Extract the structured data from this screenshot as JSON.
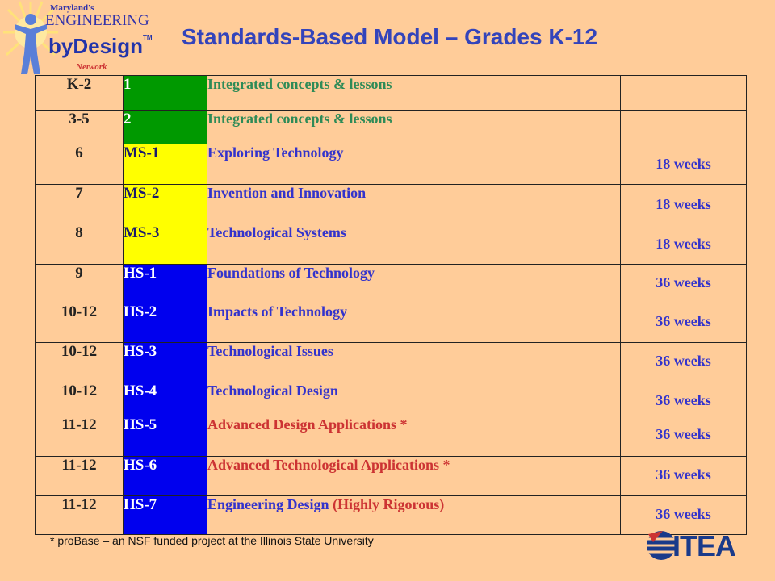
{
  "logo": {
    "line1": "Maryland's",
    "line2": "ENGINEERING",
    "line3": "byDesign",
    "tm": "TM",
    "line4": "Network"
  },
  "title": "Standards-Based Model – Grades K-12",
  "rows": [
    {
      "grade": "K-2",
      "course": "1",
      "course_color": "green",
      "desc": [
        {
          "text": "Integrated concepts & lessons",
          "color": "green"
        }
      ],
      "duration": ""
    },
    {
      "grade": "3-5",
      "course": "2",
      "course_color": "green",
      "desc": [
        {
          "text": "Integrated concepts & lessons",
          "color": "green"
        }
      ],
      "duration": ""
    },
    {
      "grade": "6",
      "course": "MS-1",
      "course_color": "yellow",
      "desc": [
        {
          "text": "Exploring Technology",
          "color": "blue"
        }
      ],
      "duration": "18 weeks"
    },
    {
      "grade": "7",
      "course": "MS-2",
      "course_color": "yellow",
      "desc": [
        {
          "text": "Invention and Innovation",
          "color": "blue"
        }
      ],
      "duration": "18 weeks"
    },
    {
      "grade": "8",
      "course": "MS-3",
      "course_color": "yellow",
      "desc": [
        {
          "text": "Technological Systems",
          "color": "blue"
        }
      ],
      "duration": "18 weeks"
    },
    {
      "grade": "9",
      "course": "HS-1",
      "course_color": "blue",
      "desc": [
        {
          "text": "Foundations of Technology",
          "color": "blue"
        }
      ],
      "duration": "36 weeks"
    },
    {
      "grade": "10-12",
      "course": "HS-2",
      "course_color": "blue",
      "desc": [
        {
          "text": "Impacts of Technology",
          "color": "blue"
        }
      ],
      "duration": "36 weeks"
    },
    {
      "grade": "10-12",
      "course": "HS-3",
      "course_color": "blue",
      "desc": [
        {
          "text": "Technological Issues",
          "color": "blue"
        }
      ],
      "duration": "36 weeks"
    },
    {
      "grade": "10-12",
      "course": "HS-4",
      "course_color": "blue",
      "desc": [
        {
          "text": "Technological Design",
          "color": "blue"
        }
      ],
      "duration": "36 weeks"
    },
    {
      "grade": "11-12",
      "course": "HS-5",
      "course_color": "blue",
      "desc": [
        {
          "text": "Advanced Design Applications *",
          "color": "red"
        }
      ],
      "duration": "36 weeks"
    },
    {
      "grade": "11-12",
      "course": "HS-6",
      "course_color": "blue",
      "desc": [
        {
          "text": "Advanced Technological Applications *",
          "color": "red"
        }
      ],
      "duration": "36 weeks"
    },
    {
      "grade": "11-12",
      "course": "HS-7",
      "course_color": "blue",
      "desc": [
        {
          "text": "Engineering Design ",
          "color": "blue"
        },
        {
          "text": "(Highly Rigorous)",
          "color": "red"
        }
      ],
      "duration": "36 weeks"
    }
  ],
  "footnote": "* proBase – an NSF funded project at the Illinois State University",
  "itea_logo": "ITEA",
  "colors": {
    "background": "#FFCC99",
    "title": "#3344BB",
    "course_green": "#009900",
    "course_yellow": "#FFFF00",
    "course_blue": "#0000EE",
    "desc_green": "#2e8b57",
    "desc_blue": "#3333CC",
    "desc_red": "#CC3333"
  }
}
